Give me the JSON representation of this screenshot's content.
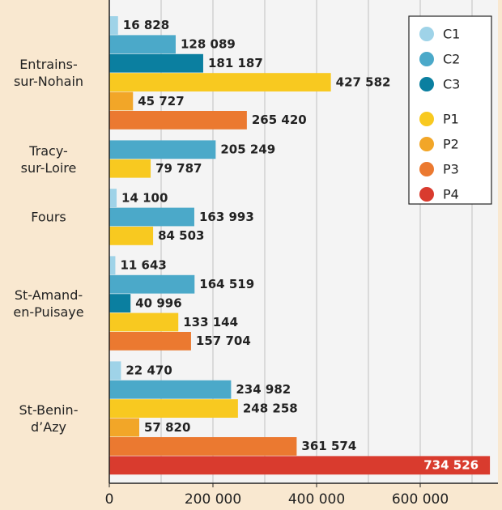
{
  "chart_data": {
    "type": "barh",
    "categories": [
      "Entrains-\nsur-Nohain",
      "Tracy-\nsur-Loire",
      "Fours",
      "St-Amand-\nen-Puisaye",
      "St-Benin-\nd’Azy"
    ],
    "series": [
      {
        "name": "C1",
        "color": "#9fd3e8",
        "values": [
          16828,
          null,
          14100,
          11643,
          22470
        ],
        "value_labels": [
          "16 828",
          null,
          "14 100",
          "11 643",
          "22 470"
        ]
      },
      {
        "name": "C2",
        "color": "#4ba9c9",
        "values": [
          128089,
          205249,
          163993,
          164519,
          234982
        ],
        "value_labels": [
          "128 089",
          "205 249",
          "163 993",
          "164 519",
          "234 982"
        ]
      },
      {
        "name": "C3",
        "color": "#0b7fa0",
        "values": [
          181187,
          null,
          null,
          40996,
          null
        ],
        "value_labels": [
          "181 187",
          null,
          null,
          "40 996",
          null
        ]
      },
      {
        "name": "P1",
        "color": "#f8c920",
        "values": [
          427582,
          79787,
          84503,
          133144,
          248258
        ],
        "value_labels": [
          "427 582",
          "79 787",
          "84 503",
          "133 144",
          "248 258"
        ]
      },
      {
        "name": "P2",
        "color": "#f2a628",
        "values": [
          45727,
          null,
          null,
          null,
          57820
        ],
        "value_labels": [
          "45 727",
          null,
          null,
          null,
          "57 820"
        ]
      },
      {
        "name": "P3",
        "color": "#eb7930",
        "values": [
          265420,
          null,
          null,
          157704,
          361574
        ],
        "value_labels": [
          "265 420",
          null,
          null,
          "157 704",
          "361 574"
        ]
      },
      {
        "name": "P4",
        "color": "#d93b2e",
        "values": [
          null,
          null,
          null,
          null,
          734526
        ],
        "value_labels": [
          null,
          null,
          null,
          null,
          "734 526"
        ]
      }
    ],
    "xlim": [
      0,
      750000
    ],
    "xticks": [
      0,
      {
        "value": 200000,
        "label": "200 000"
      },
      {
        "value": 400000,
        "label": "400 000"
      },
      {
        "value": 600000,
        "label": "600 000"
      }
    ],
    "xgrid": [
      100000,
      200000,
      300000,
      400000,
      500000,
      600000,
      700000
    ],
    "grid": true,
    "legend": "upper right"
  }
}
